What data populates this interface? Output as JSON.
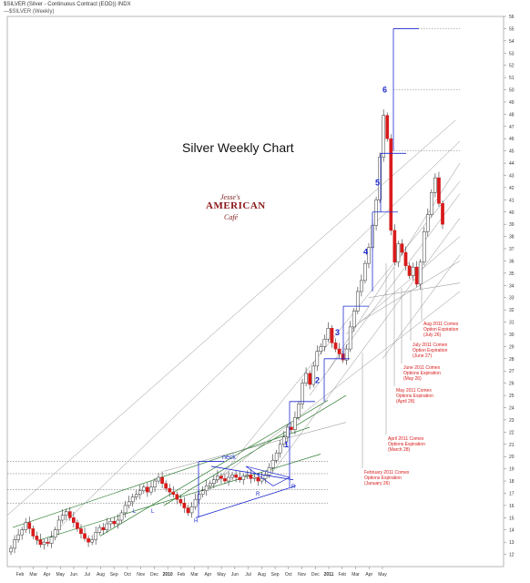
{
  "header": {
    "symbol_line": "$SILVER (Silver - Continuous Contract (EOD)) INDX",
    "sub_line": "—$SILVER (Weekly)"
  },
  "logo": {
    "line1": "Jesse's",
    "line2": "AMERICAN",
    "line3": "Café"
  },
  "chart_data": {
    "type": "candlestick",
    "title": "Silver Weekly Chart",
    "ylim": [
      11,
      56
    ],
    "y_ticks": [
      12,
      13,
      14,
      15,
      16,
      17,
      18,
      19,
      20,
      21,
      22,
      23,
      24,
      25,
      26,
      27,
      28,
      29,
      30,
      31,
      32,
      33,
      34,
      35,
      36,
      37,
      38,
      39,
      40,
      41,
      42,
      43,
      44,
      45,
      46,
      47,
      48,
      49,
      50,
      51,
      52,
      53,
      54,
      55,
      56
    ],
    "x_labels": [
      "Feb",
      "Mar",
      "Apr",
      "May",
      "Jun",
      "Jul",
      "Aug",
      "Sep",
      "Oct",
      "Nov",
      "Dec",
      "2010",
      "Feb",
      "Mar",
      "Apr",
      "May",
      "Jun",
      "Jul",
      "Aug",
      "Sep",
      "Oct",
      "Nov",
      "Dec",
      "2011",
      "Feb",
      "Mar",
      "Apr",
      "May"
    ],
    "colors": {
      "up": "#ffffff",
      "down": "#d81b1b",
      "wick": "#333333",
      "projection": "#1f2bd0",
      "expiration": "#d81b1b"
    },
    "weekly_closes": [
      12.5,
      13.2,
      13.6,
      14.0,
      14.6,
      14.1,
      13.5,
      13.2,
      12.8,
      13.0,
      12.9,
      13.4,
      14.0,
      14.8,
      15.2,
      15.5,
      15.0,
      14.6,
      14.1,
      13.7,
      13.3,
      13.0,
      13.2,
      13.8,
      14.2,
      14.0,
      14.5,
      14.7,
      14.5,
      14.8,
      15.4,
      16.0,
      16.3,
      16.7,
      16.9,
      17.2,
      17.5,
      17.1,
      17.5,
      18.0,
      18.3,
      17.8,
      17.4,
      17.1,
      16.9,
      16.5,
      16.2,
      15.8,
      15.4,
      15.9,
      16.5,
      16.9,
      17.2,
      17.6,
      17.8,
      18.1,
      18.4,
      18.2,
      18.0,
      18.3,
      18.5,
      18.3,
      18.1,
      18.4,
      18.5,
      18.2,
      18.3,
      18.0,
      18.2,
      18.5,
      19.1,
      19.7,
      20.3,
      21.0,
      21.6,
      22.4,
      22.2,
      23.2,
      24.3,
      26.0,
      26.8,
      25.9,
      27.4,
      28.6,
      29.0,
      29.6,
      30.5,
      29.3,
      28.8,
      28.4,
      27.9,
      28.8,
      30.6,
      31.9,
      33.5,
      34.4,
      35.8,
      37.1,
      38.9,
      41.0,
      44.5,
      47.9,
      46.0,
      38.5,
      35.9,
      37.4,
      36.7,
      35.6,
      34.8,
      35.5,
      34.1,
      35.9,
      38.4,
      39.8,
      41.6,
      42.8,
      40.7,
      39.0
    ],
    "wave_labels": [
      "1",
      "2",
      "3",
      "4",
      "5",
      "6"
    ],
    "pattern_labels": {
      "neck": "neck",
      "L1": "L",
      "L2": "L",
      "H": "H",
      "R1": "R",
      "R2": "R"
    },
    "annotations": [
      {
        "text": [
          "February 2011 Comex",
          "Options Expiration",
          "(January 26)"
        ]
      },
      {
        "text": [
          "April 2011 Comex",
          "Options Expiration",
          "(March 28)"
        ]
      },
      {
        "text": [
          "May 2011 Comex",
          "Options Expiration",
          "(April 28)"
        ]
      },
      {
        "text": [
          "June 2011 Comex",
          "Options Expiration",
          "(May 26)"
        ]
      },
      {
        "text": [
          "July 2011 Comex",
          "Option Expiration",
          "(June 27)"
        ]
      },
      {
        "text": [
          "Aug 2011 Comex",
          "Option Expiration",
          "(July 26)"
        ]
      }
    ]
  }
}
